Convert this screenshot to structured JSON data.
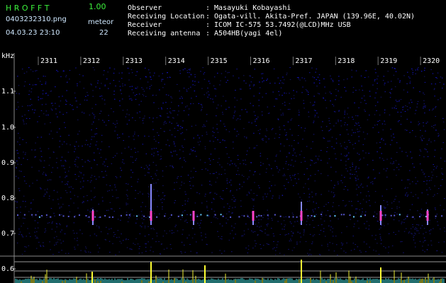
{
  "header": {
    "title": "H R O F F T",
    "version": "1.00",
    "filename": "0403232310.png",
    "datetime": "04.03.23 23:10",
    "meteor_label": "meteor",
    "meteor_count": "22"
  },
  "info": [
    {
      "label": "Observer",
      "value": ": Masayuki Kobayashi"
    },
    {
      "label": "Receiving Location",
      "value": ": Ogata-vill. Akita-Pref. JAPAN (139.96E, 40.02N)"
    },
    {
      "label": "Receiver",
      "value": ": ICOM IC-575 53.7492(@LCD)MHz USB"
    },
    {
      "label": "Receiving antenna",
      "value": ": A504HB(yagi 4el)"
    }
  ],
  "time_labels": [
    "2311",
    "2312",
    "2313",
    "2314",
    "2315",
    "2316",
    "2317",
    "2318",
    "2319",
    "2320"
  ],
  "freq_unit": "kHz",
  "freq_labels": [
    "1.1",
    "1.0",
    "0.9",
    "0.8",
    "0.7",
    "0.6"
  ]
}
